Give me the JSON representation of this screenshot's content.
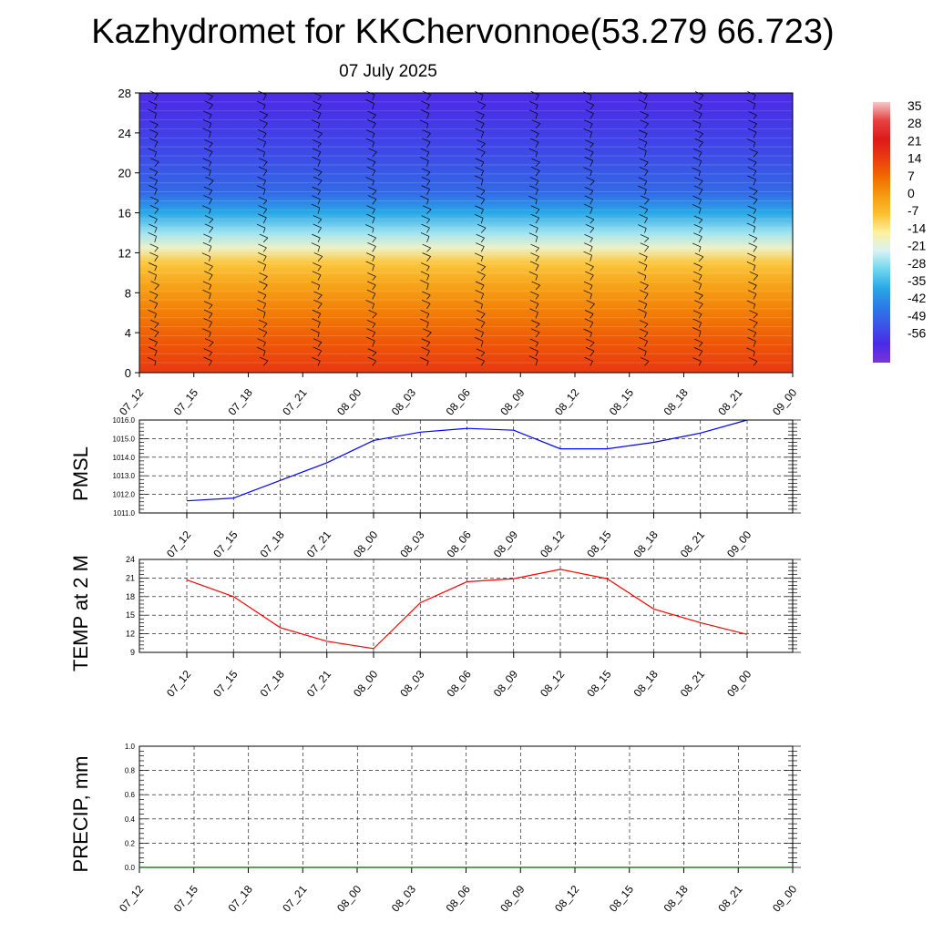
{
  "page": {
    "title": "Kazhydromet for KKChervonnoe(53.279 66.723)",
    "date": "07 July 2025"
  },
  "colors": {
    "pmsl_line": "#0000ff",
    "temp_line": "#ff0000",
    "precip_line": "#006400",
    "grid": "#000000"
  },
  "chart_data": [
    {
      "id": "cross_section",
      "type": "heatmap",
      "title": "",
      "xlabel": "",
      "ylabel": "",
      "x_ticks": [
        "07_12",
        "07_15",
        "07_18",
        "07_21",
        "08_00",
        "08_03",
        "08_06",
        "08_09",
        "08_12",
        "08_15",
        "08_18",
        "08_21",
        "09_00"
      ],
      "y_ticks": [
        0,
        4,
        8,
        12,
        16,
        20,
        24,
        28
      ],
      "ylim": [
        0,
        28
      ],
      "colorbar": {
        "labels": [
          "35",
          "28",
          "21",
          "14",
          "7",
          "0",
          "-7",
          "-14",
          "-21",
          "-28",
          "-35",
          "-42",
          "-49",
          "-56"
        ],
        "colors": [
          "#f4c8c8",
          "#e84040",
          "#dd1a1a",
          "#ea3a10",
          "#f06a00",
          "#f59a10",
          "#fbc030",
          "#fff1a0",
          "#d8f2f4",
          "#6ed6ee",
          "#28a8e6",
          "#2c7ae6",
          "#3a55e8",
          "#4a2ae6",
          "#7a33d8"
        ]
      },
      "temperature_profile": [
        {
          "level": 0,
          "value": 20
        },
        {
          "level": 3,
          "value": 15
        },
        {
          "level": 6,
          "value": 9
        },
        {
          "level": 9,
          "value": 2
        },
        {
          "level": 11,
          "value": -4
        },
        {
          "level": 12.5,
          "value": -14
        },
        {
          "level": 14,
          "value": -22
        },
        {
          "level": 16,
          "value": -33
        },
        {
          "level": 18,
          "value": -44
        },
        {
          "level": 22,
          "value": -50
        },
        {
          "level": 26,
          "value": -54
        },
        {
          "level": 28,
          "value": -56
        }
      ],
      "wind_barbs": "black wind barbs at every level for each of 13 forecast times"
    },
    {
      "id": "pmsl",
      "type": "line",
      "ylabel": "PMSL",
      "x": [
        "07_12",
        "07_15",
        "07_18",
        "07_21",
        "08_00",
        "08_03",
        "08_06",
        "08_09",
        "08_12",
        "08_15",
        "08_18",
        "08_21",
        "09_00"
      ],
      "y_ticks": [
        "1011.0",
        "1012.0",
        "1013.0",
        "1014.0",
        "1015.0",
        "1016.0"
      ],
      "ylim": [
        1011,
        1016
      ],
      "series": [
        {
          "values": [
            1011.65,
            1011.8,
            1012.75,
            1013.7,
            1014.9,
            1015.35,
            1015.55,
            1015.45,
            1014.45,
            1014.45,
            1014.8,
            1015.3,
            1016.0
          ]
        }
      ]
    },
    {
      "id": "temp2m",
      "type": "line",
      "ylabel": "TEMP at 2 M",
      "x": [
        "07_12",
        "07_15",
        "07_18",
        "07_21",
        "08_00",
        "08_03",
        "08_06",
        "08_09",
        "08_12",
        "08_15",
        "08_18",
        "08_21",
        "09_00"
      ],
      "y_ticks": [
        "9",
        "12",
        "15",
        "18",
        "21",
        "24"
      ],
      "ylim": [
        9,
        24
      ],
      "series": [
        {
          "values": [
            20.7,
            18.0,
            13.0,
            10.8,
            9.6,
            17.0,
            20.4,
            20.9,
            22.4,
            20.9,
            16.0,
            13.8,
            11.9
          ]
        }
      ]
    },
    {
      "id": "precip",
      "type": "line",
      "ylabel": "PRECIP, mm",
      "x": [
        "07_12",
        "07_15",
        "07_18",
        "07_21",
        "08_00",
        "08_03",
        "08_06",
        "08_09",
        "08_12",
        "08_15",
        "08_18",
        "08_21",
        "09_00"
      ],
      "y_ticks": [
        "0.0",
        "0.2",
        "0.4",
        "0.6",
        "0.8",
        "1.0"
      ],
      "ylim": [
        0,
        1
      ],
      "series": [
        {
          "values": [
            0,
            0,
            0,
            0,
            0,
            0,
            0,
            0,
            0,
            0,
            0,
            0,
            0
          ]
        }
      ]
    }
  ]
}
